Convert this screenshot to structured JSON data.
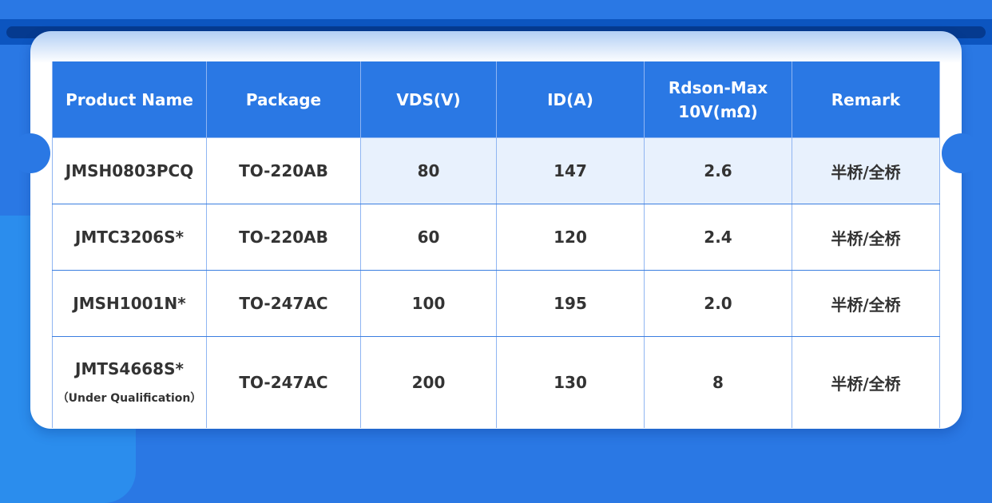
{
  "headers": [
    "Product Name",
    "Package",
    "VDS(V)",
    "ID(A)",
    "Rdson-Max\n10V(mΩ)",
    "Remark"
  ],
  "rows": [
    {
      "name": "JMSH0803PCQ",
      "package": "TO-220AB",
      "vds": "80",
      "id": "147",
      "rdson": "2.6",
      "remark": "半桥/全桥"
    },
    {
      "name": "JMTC3206S*",
      "package": "TO-220AB",
      "vds": "60",
      "id": "120",
      "rdson": "2.4",
      "remark": "半桥/全桥"
    },
    {
      "name": "JMSH1001N*",
      "package": "TO-247AC",
      "vds": "100",
      "id": "195",
      "rdson": "2.0",
      "remark": "半桥/全桥"
    },
    {
      "name": "JMTS4668S*",
      "note": "（Under Qualification）",
      "package": "TO-247AC",
      "vds": "200",
      "id": "130",
      "rdson": "8",
      "remark": "半桥/全桥"
    }
  ],
  "colors": {
    "accent": "#2a78e4",
    "highlight_row": "#e8f1fd"
  }
}
